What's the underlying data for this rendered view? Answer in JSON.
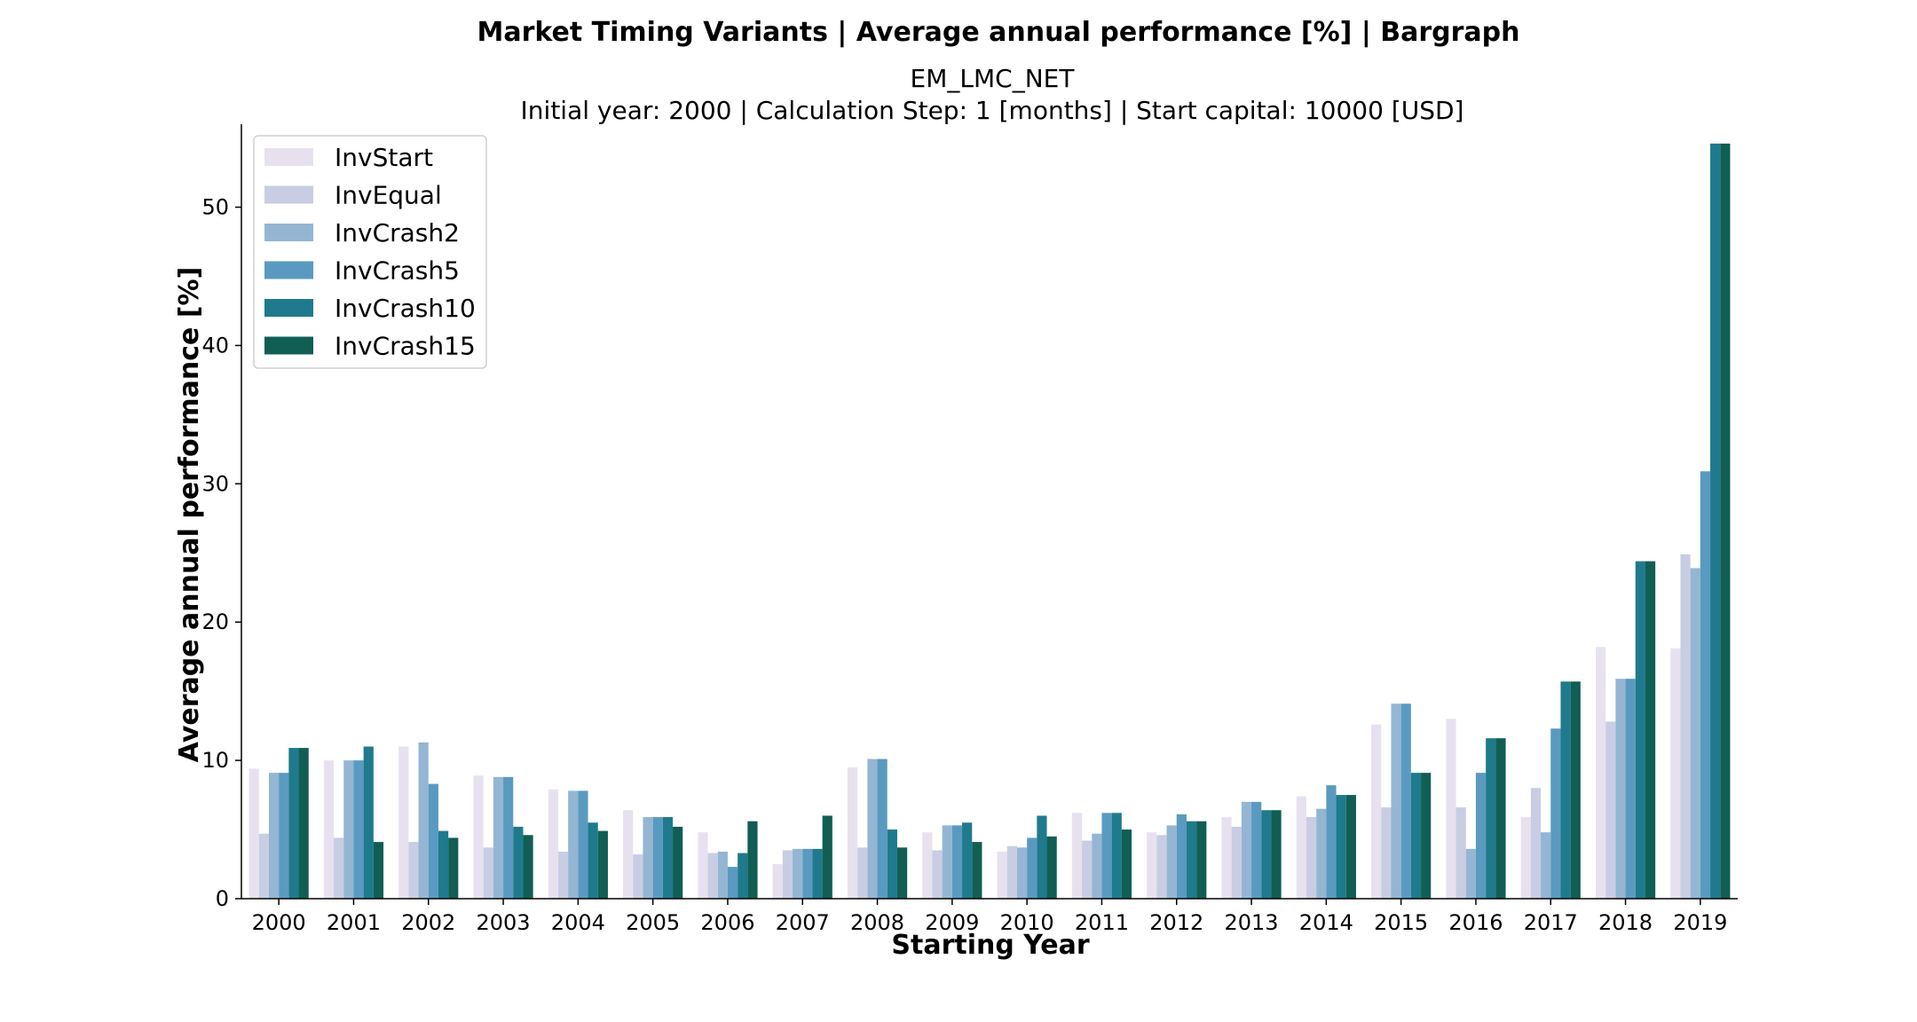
{
  "chart_data": {
    "type": "bar",
    "title": "Market Timing Variants | Average annual performance [%] | Bargraph",
    "subtitle_line1": "EM_LMC_NET",
    "subtitle_line2": "Initial year: 2000 | Calculation Step: 1 [months] | Start capital: 10000 [USD]",
    "xlabel": "Starting Year",
    "ylabel": "Average annual performance [%]",
    "ylim": [
      0,
      56
    ],
    "yticks": [
      0,
      10,
      20,
      30,
      40,
      50
    ],
    "grid": false,
    "legend_position": "top-left",
    "categories": [
      "2000",
      "2001",
      "2002",
      "2003",
      "2004",
      "2005",
      "2006",
      "2007",
      "2008",
      "2009",
      "2010",
      "2011",
      "2012",
      "2013",
      "2014",
      "2015",
      "2016",
      "2017",
      "2018",
      "2019"
    ],
    "series": [
      {
        "name": "InvStart",
        "color": "#e7e1ef",
        "values": [
          9.4,
          10.0,
          11.0,
          8.9,
          7.9,
          6.4,
          4.8,
          2.5,
          9.5,
          4.8,
          3.4,
          6.2,
          4.8,
          5.9,
          7.4,
          12.6,
          13.0,
          5.9,
          18.2,
          18.1
        ]
      },
      {
        "name": "InvEqual",
        "color": "#c8cde3",
        "values": [
          4.7,
          4.4,
          4.1,
          3.7,
          3.4,
          3.2,
          3.3,
          3.5,
          3.7,
          3.5,
          3.8,
          4.2,
          4.6,
          5.2,
          5.9,
          6.6,
          6.6,
          8.0,
          12.8,
          24.9
        ]
      },
      {
        "name": "InvCrash2",
        "color": "#94b6d3",
        "values": [
          9.1,
          10.0,
          11.3,
          8.8,
          7.8,
          5.9,
          3.4,
          3.6,
          10.1,
          5.3,
          3.7,
          4.7,
          5.3,
          7.0,
          6.5,
          14.1,
          3.6,
          4.8,
          15.9,
          23.9
        ]
      },
      {
        "name": "InvCrash5",
        "color": "#5a9ac0",
        "values": [
          9.1,
          10.0,
          8.3,
          8.8,
          7.8,
          5.9,
          2.3,
          3.6,
          10.1,
          5.3,
          4.4,
          6.2,
          6.1,
          7.0,
          8.2,
          14.1,
          9.1,
          12.3,
          15.9,
          30.9
        ]
      },
      {
        "name": "InvCrash10",
        "color": "#1e7a8c",
        "values": [
          10.9,
          11.0,
          4.9,
          5.2,
          5.5,
          5.9,
          3.3,
          3.6,
          5.0,
          5.5,
          6.0,
          6.2,
          5.6,
          6.4,
          7.5,
          9.1,
          11.6,
          15.7,
          24.4,
          54.6
        ]
      },
      {
        "name": "InvCrash15",
        "color": "#115e54",
        "values": [
          10.9,
          4.1,
          4.4,
          4.6,
          4.9,
          5.2,
          5.6,
          6.0,
          3.7,
          4.1,
          4.5,
          5.0,
          5.6,
          6.4,
          7.5,
          9.1,
          11.6,
          15.7,
          24.4,
          54.6
        ]
      }
    ]
  }
}
